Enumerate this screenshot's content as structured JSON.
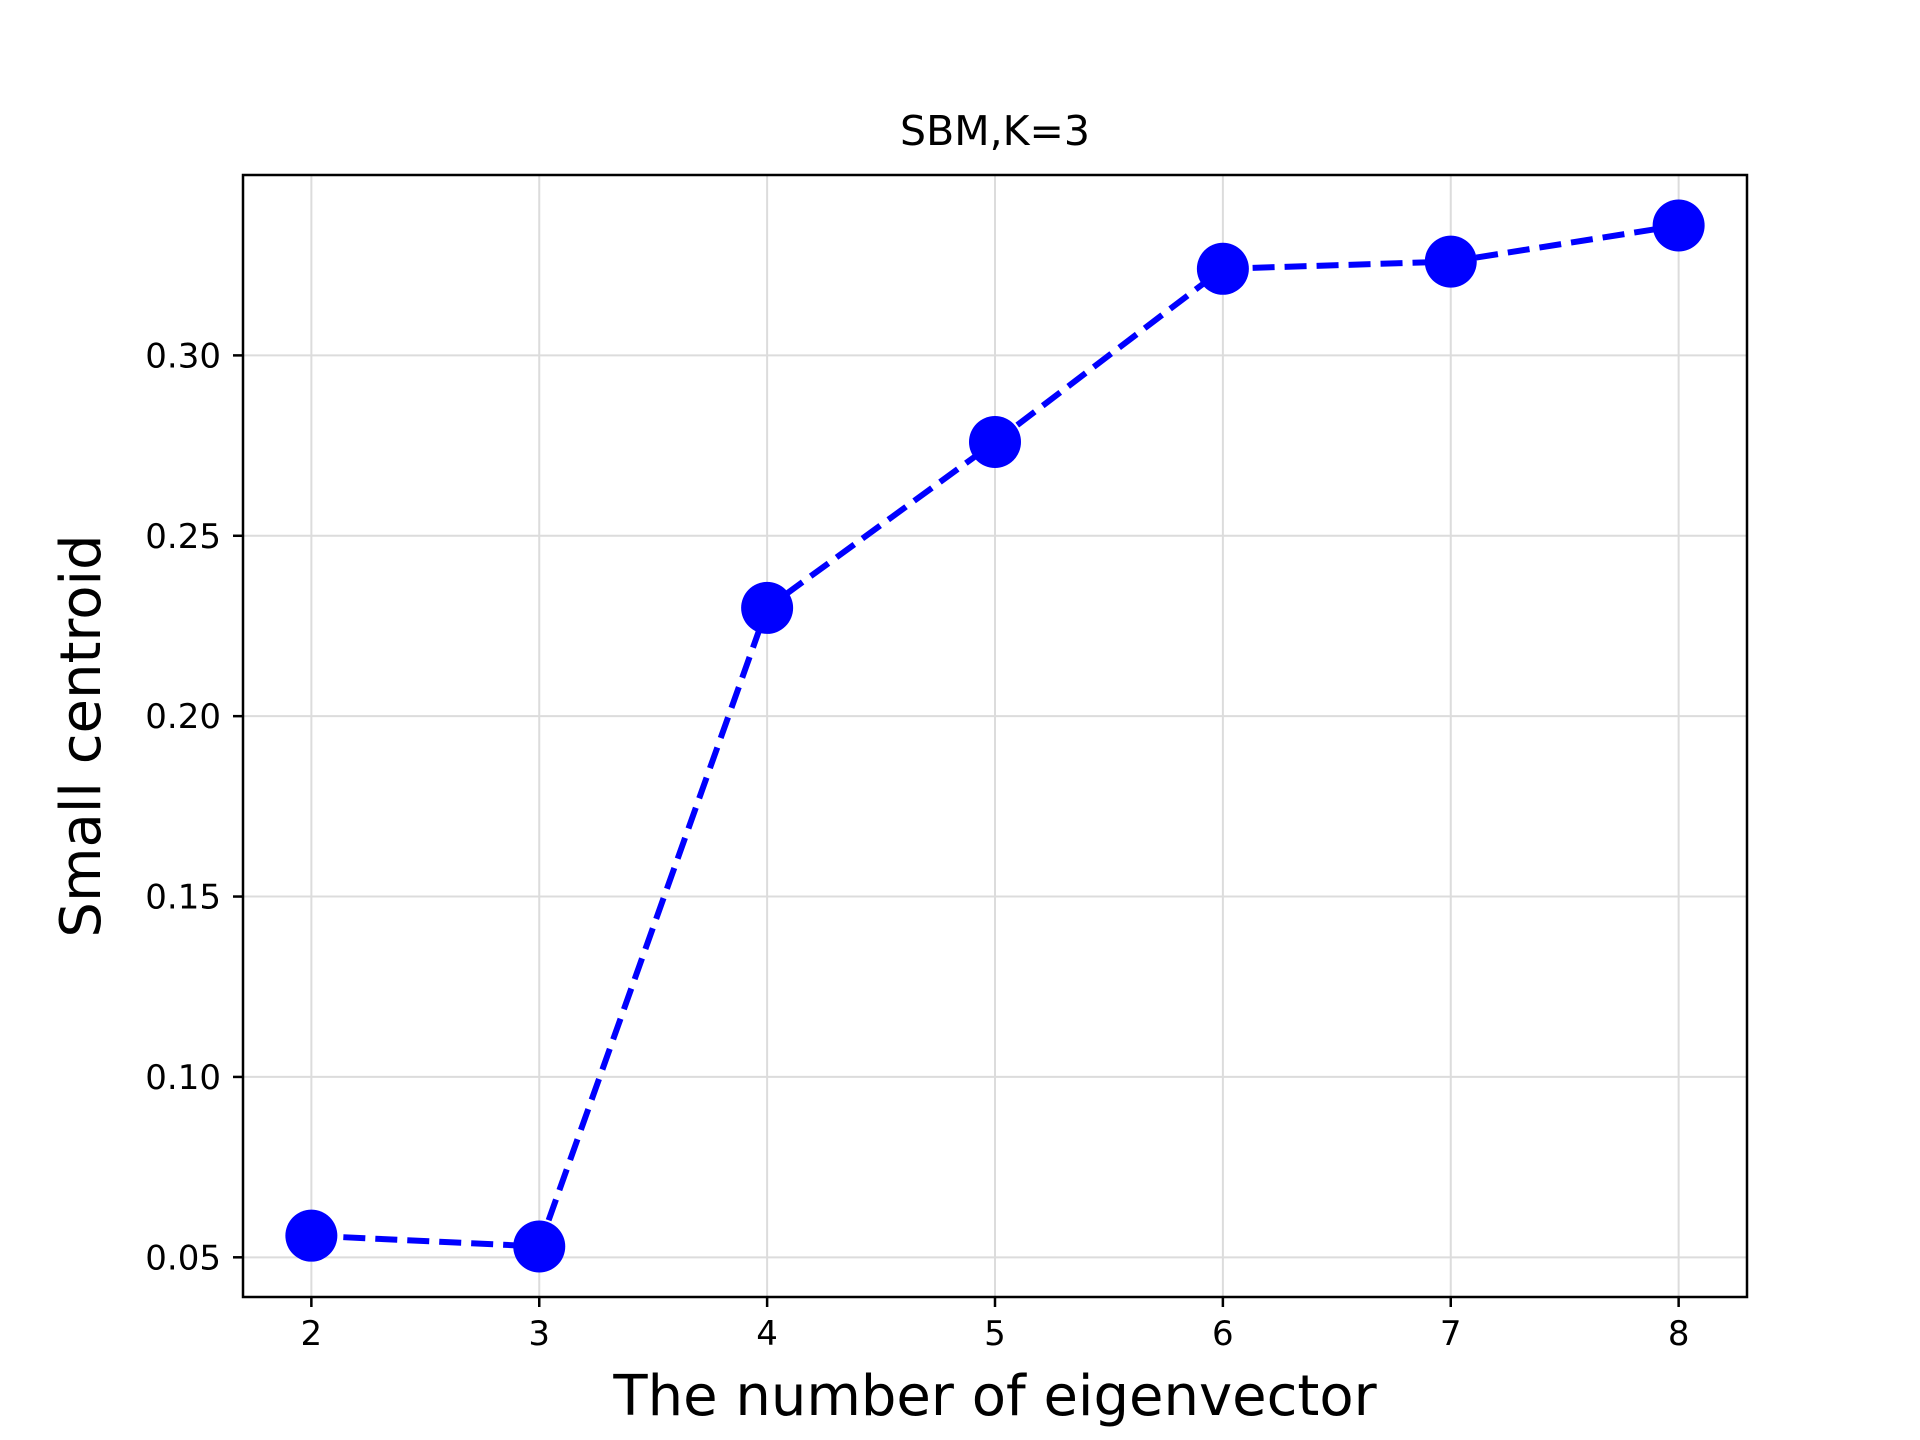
{
  "chart_data": {
    "type": "line",
    "title": "SBM,K=3",
    "xlabel": "The number of eigenvector",
    "ylabel": "Small centroid",
    "x": [
      2,
      3,
      4,
      5,
      6,
      7,
      8
    ],
    "series": [
      {
        "values": [
          0.056,
          0.053,
          0.23,
          0.276,
          0.324,
          0.326,
          0.336
        ],
        "color": "#0000ff",
        "line_style": "dashed",
        "marker": "circle"
      }
    ],
    "xlim": [
      1.7,
      8.3
    ],
    "ylim": [
      0.039,
      0.35
    ],
    "xticks": [
      2,
      3,
      4,
      5,
      6,
      7,
      8
    ],
    "xtick_labels": [
      "2",
      "3",
      "4",
      "5",
      "6",
      "7",
      "8"
    ],
    "yticks": [
      0.05,
      0.1,
      0.15,
      0.2,
      0.25,
      0.3
    ],
    "ytick_labels": [
      "0.05",
      "0.10",
      "0.15",
      "0.20",
      "0.25",
      "0.30"
    ],
    "grid": true,
    "legend": "none"
  }
}
